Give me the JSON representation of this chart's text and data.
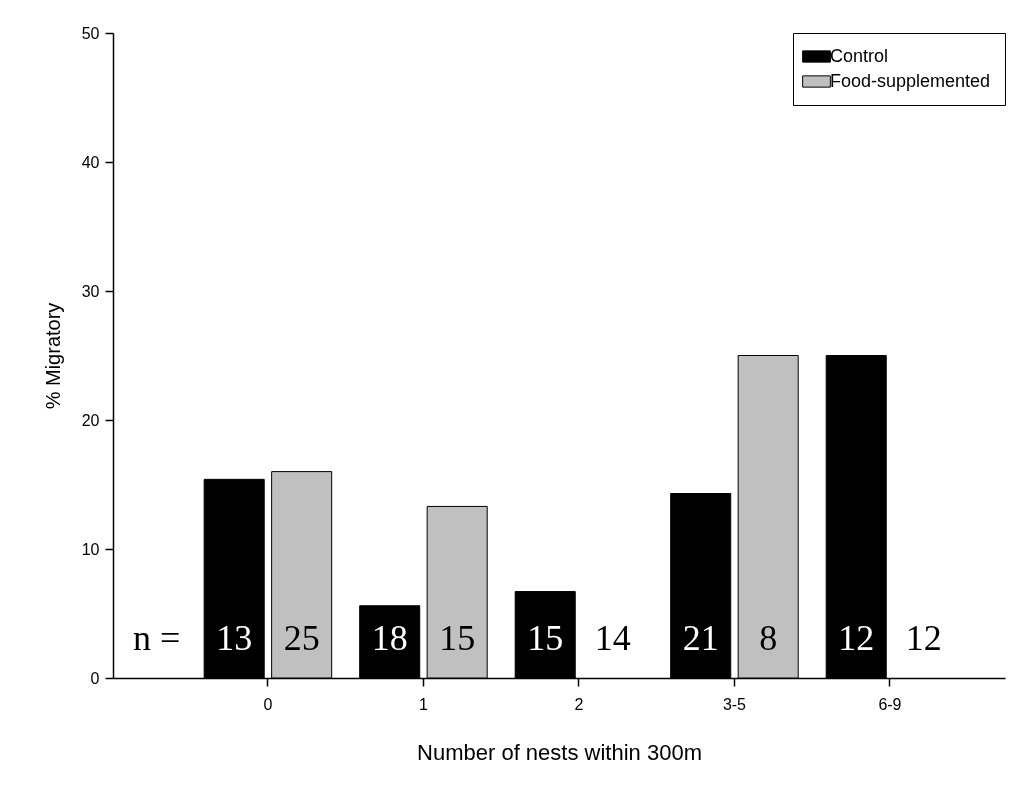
{
  "chart_data": {
    "type": "bar",
    "xlabel": "Number of nests within 300m",
    "ylabel": "% Migratory",
    "categories": [
      "0",
      "1",
      "2",
      "3-5",
      "6-9"
    ],
    "series": [
      {
        "name": "Control",
        "color": "#000000",
        "values": [
          15.4,
          5.6,
          6.7,
          14.3,
          25.0
        ]
      },
      {
        "name": "Food-supplemented",
        "color": "#c0c0c0",
        "values": [
          16.0,
          13.3,
          0,
          25.0,
          0
        ]
      }
    ],
    "ylim": [
      0,
      50
    ],
    "yticks": [
      0,
      10,
      20,
      30,
      40,
      50
    ],
    "grid": false,
    "legend": "top right",
    "annotations": [
      "n =",
      {
        "text": "13",
        "x": "0",
        "y": 3
      },
      {
        "text": "25",
        "x": "0",
        "y": 3
      },
      {
        "text": "18",
        "x": "1",
        "y": 3
      },
      {
        "text": "15",
        "x": "1",
        "y": 3
      },
      {
        "text": "15",
        "x": "2",
        "y": 3
      },
      {
        "text": "14",
        "x": "2",
        "y": 3
      },
      {
        "text": "21",
        "x": "3-5",
        "y": 3
      },
      {
        "text": "8",
        "x": "3-5",
        "y": 3
      },
      {
        "text": "12",
        "x": "6-9",
        "y": 3
      },
      {
        "text": "12",
        "x": "6-9",
        "y": 3
      }
    ]
  }
}
